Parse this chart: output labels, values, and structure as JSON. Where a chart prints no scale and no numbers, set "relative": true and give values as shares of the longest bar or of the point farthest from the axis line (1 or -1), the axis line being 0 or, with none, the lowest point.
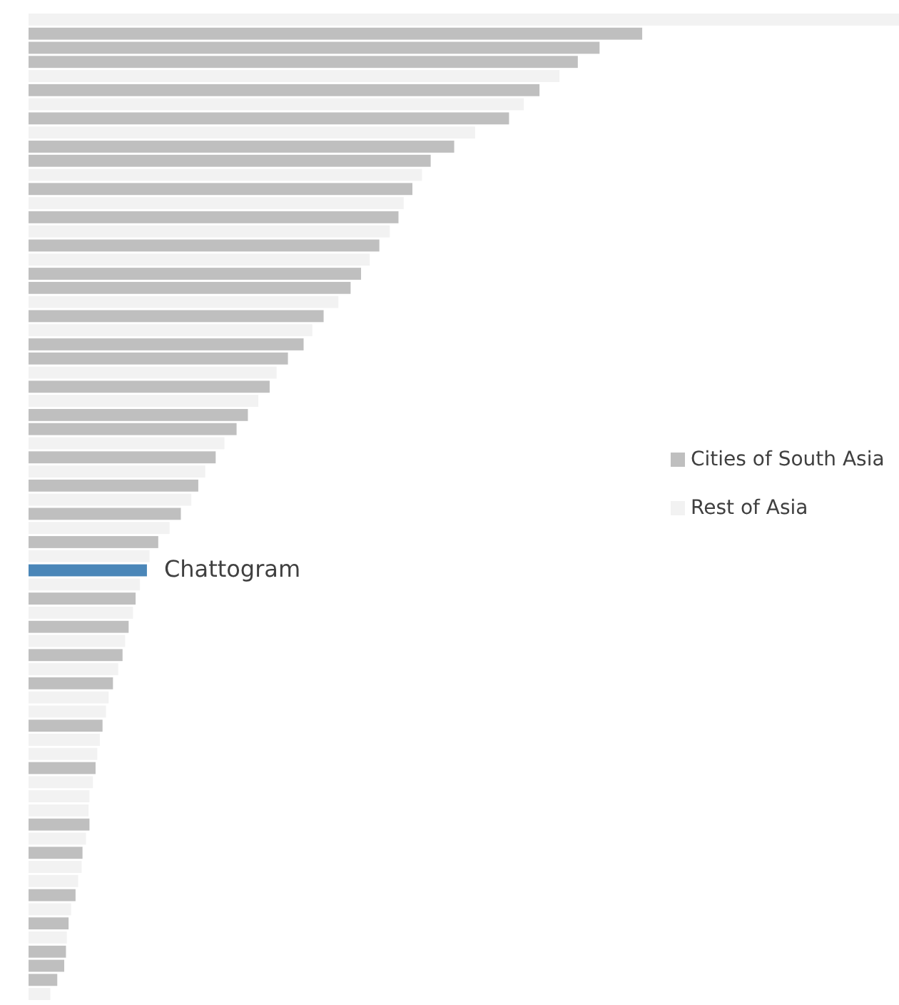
{
  "chart_data": {
    "type": "bar",
    "orientation": "horizontal",
    "stacked": true,
    "relative": true,
    "legend": "right",
    "categories": [
      null,
      null,
      null,
      null,
      null,
      null,
      null,
      null,
      null,
      null,
      null,
      null,
      null,
      null,
      null,
      null,
      null,
      null,
      null,
      null,
      null,
      null,
      null,
      null,
      null,
      null,
      null,
      null,
      null,
      null,
      null,
      null,
      null,
      null,
      null,
      null,
      null,
      null,
      null,
      null,
      null,
      null,
      null,
      null,
      null,
      null,
      null,
      null,
      null,
      null,
      null,
      null,
      null,
      null,
      null,
      null,
      null,
      null,
      null,
      null,
      null,
      null,
      null,
      null,
      null,
      null,
      null,
      null,
      null,
      null
    ],
    "series": [
      {
        "name": "Cities of South Asia",
        "color": "#bfbfbf",
        "values": [
          null,
          0.705,
          0.656,
          0.631,
          null,
          0.587,
          null,
          0.552,
          null,
          0.489,
          0.462,
          null,
          0.441,
          null,
          0.425,
          null,
          0.403,
          null,
          0.382,
          0.37,
          null,
          0.339,
          null,
          0.316,
          0.298,
          null,
          0.277,
          null,
          0.252,
          0.239,
          null,
          0.215,
          null,
          0.195,
          null,
          0.175,
          null,
          0.149,
          null,
          null,
          null,
          0.123,
          null,
          0.115,
          null,
          0.108,
          null,
          0.097,
          null,
          null,
          0.085,
          null,
          null,
          0.077,
          null,
          null,
          null,
          0.07,
          null,
          0.062,
          null,
          null,
          0.054,
          null,
          0.046,
          null,
          0.043,
          0.041,
          0.033,
          null
        ]
      },
      {
        "name": "Rest of Asia",
        "color": "#f2f2f2",
        "values": [
          1,
          null,
          null,
          null,
          0.61,
          null,
          0.569,
          null,
          0.513,
          null,
          null,
          0.452,
          null,
          0.431,
          null,
          0.415,
          null,
          0.392,
          null,
          null,
          0.356,
          null,
          0.326,
          null,
          null,
          0.285,
          null,
          0.264,
          null,
          null,
          0.225,
          null,
          0.203,
          null,
          0.187,
          null,
          0.162,
          null,
          0.139,
          null,
          0.128,
          null,
          0.12,
          null,
          0.111,
          null,
          0.103,
          null,
          0.092,
          0.089,
          null,
          0.082,
          0.079,
          null,
          0.074,
          0.07,
          0.069,
          null,
          0.066,
          null,
          0.061,
          0.057,
          null,
          0.049,
          null,
          0.044,
          null,
          null,
          null,
          0.025
        ]
      },
      {
        "name": "Chattogram",
        "color": "#4a86b8",
        "values": [
          null,
          null,
          null,
          null,
          null,
          null,
          null,
          null,
          null,
          null,
          null,
          null,
          null,
          null,
          null,
          null,
          null,
          null,
          null,
          null,
          null,
          null,
          null,
          null,
          null,
          null,
          null,
          null,
          null,
          null,
          null,
          null,
          null,
          null,
          null,
          null,
          null,
          null,
          null,
          0.136,
          null,
          null,
          null,
          null,
          null,
          null,
          null,
          null,
          null,
          null,
          null,
          null,
          null,
          null,
          null,
          null,
          null,
          null,
          null,
          null,
          null,
          null,
          null,
          null,
          null,
          null,
          null,
          null,
          null,
          null
        ]
      }
    ]
  }
}
